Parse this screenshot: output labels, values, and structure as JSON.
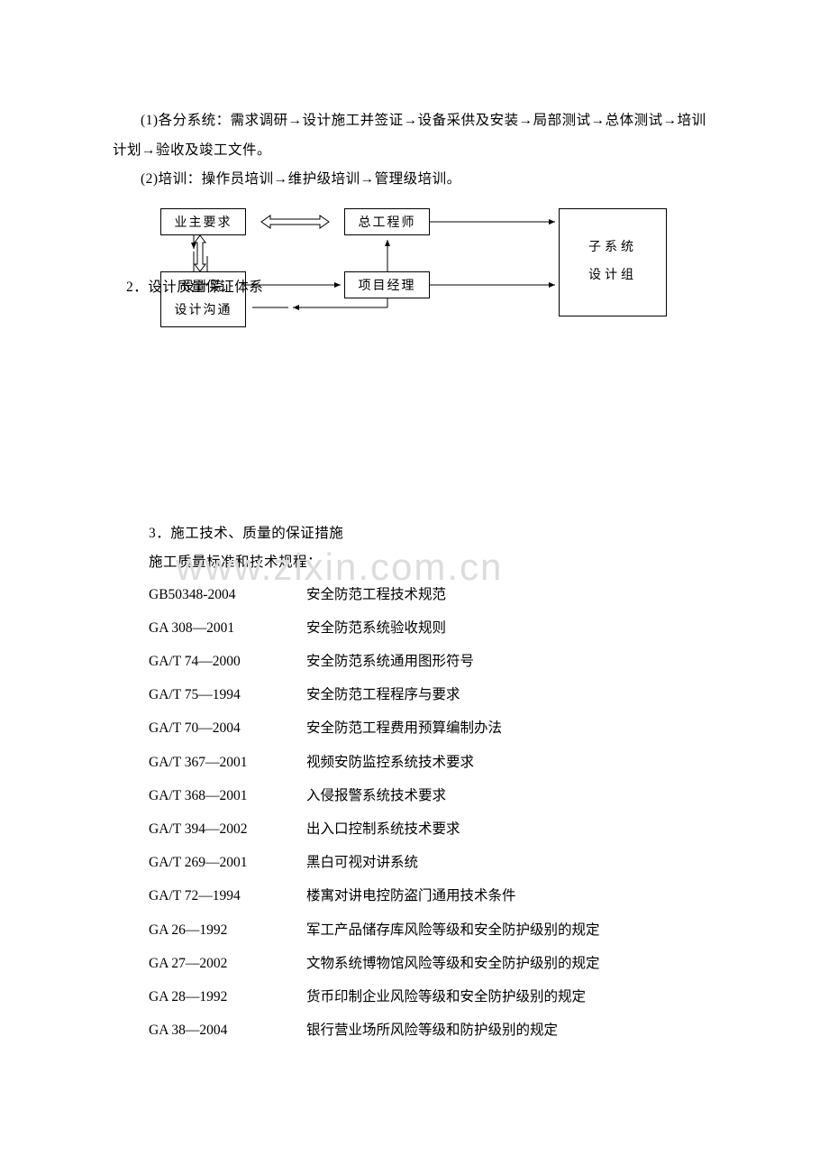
{
  "paragraphs": {
    "p1": "(1)各分系统：需求调研→设计施工并签证→设备采供及安装→局部测试→总体测试→培训计划→验收及竣工文件。",
    "p2": "(2)培训：操作员培训→维护级培训→管理级培训。"
  },
  "diagram": {
    "owner": "业主要求",
    "chief": "总工程师",
    "institute_l1": "设计院",
    "institute_l2": "设计沟通",
    "pm": "项目经理",
    "sub_l1": "子系统",
    "sub_l2": "设计组",
    "overlay": "2．设计质量保证体系",
    "stroke": "#000000",
    "stroke_width": 1
  },
  "watermark": "www.zixin.com.cn",
  "section3": {
    "heading": "3．施工技术、质量的保证措施",
    "sub": "施工质量标准和技术规程：",
    "standards": [
      {
        "code": "GB50348-2004",
        "name": "安全防范工程技术规范"
      },
      {
        "code": "GA 308—2001",
        "name": "安全防范系统验收规则"
      },
      {
        "code": "GA/T 74—2000",
        "name": "安全防范系统通用图形符号"
      },
      {
        "code": "GA/T 75—1994",
        "name": "安全防范工程程序与要求"
      },
      {
        "code": "GA/T 70—2004",
        "name": "安全防范工程费用预算编制办法"
      },
      {
        "code": "GA/T 367—2001",
        "name": "视频安防监控系统技术要求"
      },
      {
        "code": "GA/T 368—2001",
        "name": "入侵报警系统技术要求"
      },
      {
        "code": "GA/T 394—2002",
        "name": "出入口控制系统技术要求"
      },
      {
        "code": "GA/T 269—2001",
        "name": "黑白可视对讲系统"
      },
      {
        "code": "GA/T 72—1994",
        "name": "楼寓对讲电控防盗门通用技术条件"
      },
      {
        "code": "GA 26—1992",
        "name": "军工产品储存库风险等级和安全防护级别的规定"
      },
      {
        "code": "GA 27—2002",
        "name": "文物系统博物馆风险等级和安全防护级别的规定"
      },
      {
        "code": "GA 28—1992",
        "name": "货币印制企业风险等级和安全防护级别的规定"
      },
      {
        "code": "GA 38—2004",
        "name": "银行营业场所风险等级和防护级别的规定"
      }
    ]
  }
}
